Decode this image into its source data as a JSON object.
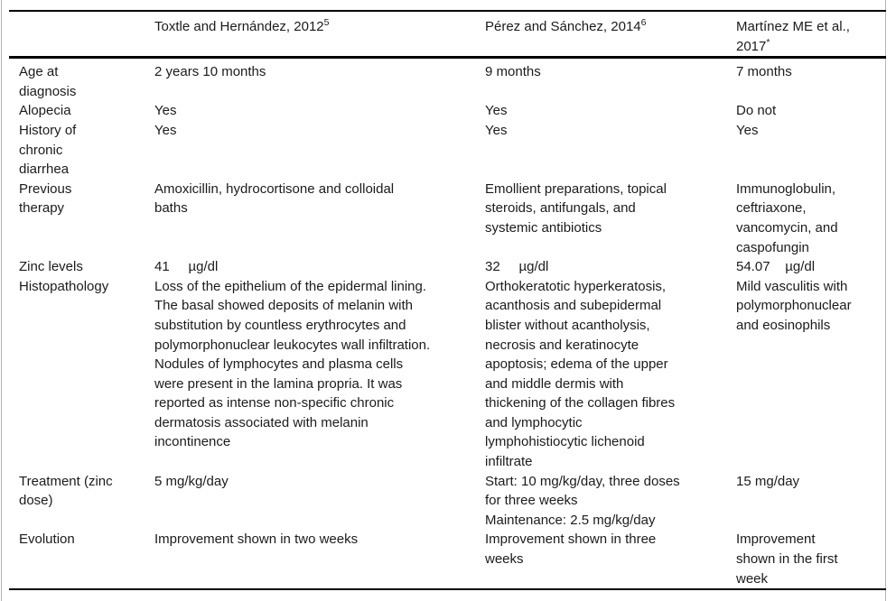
{
  "page": {
    "background_color": "#ffffff",
    "frame_color": "#b5b5b5",
    "rule_color": "#000000",
    "text_color": "#1b1b1b"
  },
  "table": {
    "columns": [
      {
        "label": "",
        "sup": ""
      },
      {
        "label": "Toxtle and Hernández, 2012",
        "sup": "5"
      },
      {
        "label": "Pérez and Sánchez, 2014",
        "sup": "6"
      },
      {
        "label": "Martínez ME et al.,\n2017",
        "sup": "*"
      }
    ],
    "rows": [
      {
        "label": "Age at\ndiagnosis",
        "cells": [
          "2 years 10 months",
          "9 months",
          "7 months"
        ]
      },
      {
        "label": "Alopecia",
        "cells": [
          "Yes",
          "Yes",
          "Do not"
        ]
      },
      {
        "label": "History of\nchronic\ndiarrhea",
        "cells": [
          "Yes",
          "Yes",
          "Yes"
        ]
      },
      {
        "label": "Previous\ntherapy",
        "cells": [
          "Amoxicillin, hydrocortisone and colloidal\nbaths",
          "Emollient preparations, topical\nsteroids, antifungals, and\nsystemic antibiotics",
          "Immunoglobulin,\nceftriaxone,\nvancomycin, and\ncaspofungin"
        ]
      },
      {
        "label": "Zinc levels",
        "cells": [
          "41     µg/dl",
          "32     µg/dl",
          "54.07    µg/dl"
        ]
      },
      {
        "label": "Histopathology",
        "cells": [
          "Loss of the epithelium of the epidermal lining.\nThe basal showed deposits of melanin with\nsubstitution by countless erythrocytes and\npolymorphonuclear leukocytes wall infiltration.\nNodules of lymphocytes and plasma cells\nwere present in the lamina propria. It was\nreported as intense non-specific chronic\ndermatosis associated with melanin\nincontinence",
          "Orthokeratotic hyperkeratosis,\nacanthosis and subepidermal\nblister without acantholysis,\nnecrosis and keratinocyte\napoptosis; edema of the upper\nand middle dermis with\nthickening of the collagen fibres\nand lymphocytic\nlymphohistiocytic lichenoid\ninfiltrate",
          "Mild vasculitis with\npolymorphonuclear\nand eosinophils"
        ]
      },
      {
        "label": "Treatment (zinc\ndose)",
        "cells": [
          "5 mg/kg/day",
          "Start: 10 mg/kg/day, three doses\nfor three weeks\nMaintenance: 2.5 mg/kg/day",
          "15 mg/day"
        ]
      },
      {
        "label": "Evolution",
        "cells": [
          "Improvement shown in two weeks",
          "Improvement shown in three\nweeks",
          "Improvement\nshown in the first\nweek"
        ]
      }
    ]
  }
}
